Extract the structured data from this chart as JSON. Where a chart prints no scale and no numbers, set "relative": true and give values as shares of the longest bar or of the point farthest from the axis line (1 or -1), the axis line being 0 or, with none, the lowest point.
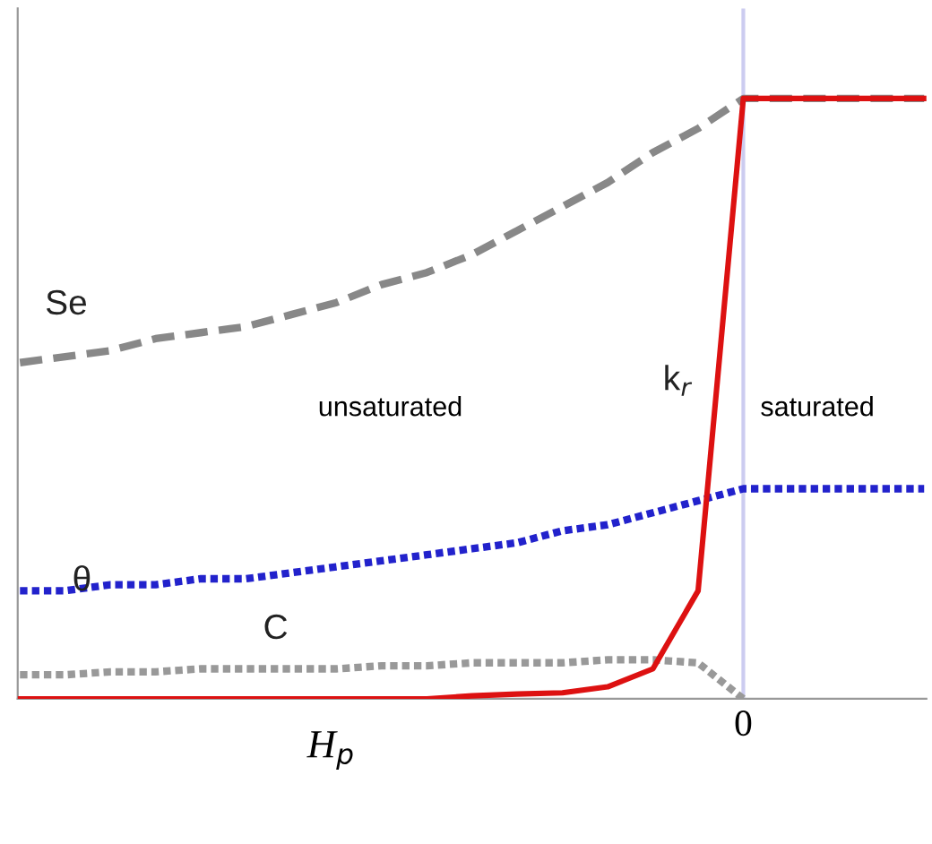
{
  "chart_data": {
    "type": "line",
    "relative": true,
    "categories": [
      null,
      null,
      null,
      null,
      null,
      null,
      null,
      null,
      null,
      null,
      null,
      null,
      null,
      null,
      null,
      null,
      null,
      null,
      null,
      null,
      null
    ],
    "series": [
      {
        "name": "Se",
        "color": "#888888",
        "line_style": "dashed",
        "values": [
          0.56,
          0.57,
          0.58,
          0.6,
          0.61,
          0.62,
          0.64,
          0.66,
          0.69,
          0.71,
          0.74,
          0.78,
          0.82,
          0.86,
          0.91,
          0.95,
          1,
          1,
          1,
          1,
          1
        ]
      },
      {
        "name": "θ",
        "color": "#2222cc",
        "line_style": "dotted",
        "values": [
          0.18,
          0.18,
          0.19,
          0.19,
          0.2,
          0.2,
          0.21,
          0.22,
          0.23,
          0.24,
          0.25,
          0.26,
          0.28,
          0.29,
          0.31,
          0.33,
          0.35,
          0.35,
          0.35,
          0.35,
          0.35
        ]
      },
      {
        "name": "C",
        "color": "#999999",
        "line_style": "dotted",
        "values": [
          0.04,
          0.04,
          0.045,
          0.045,
          0.05,
          0.05,
          0.05,
          0.05,
          0.055,
          0.055,
          0.06,
          0.06,
          0.06,
          0.065,
          0.065,
          0.06,
          0,
          null,
          null,
          null,
          null
        ]
      },
      {
        "name": "k$_{r}$",
        "color": "#dd1111",
        "line_style": "solid",
        "values": [
          0,
          0,
          0,
          0,
          0,
          0,
          0,
          0,
          0,
          0,
          0.005,
          0.008,
          0.01,
          0.02,
          0.05,
          0.18,
          1,
          1,
          1,
          1,
          1
        ]
      }
    ],
    "annotations": [
      "unsaturated",
      "saturated",
      "H$_{p}$"
    ],
    "ref_lines": [
      {
        "axis": "x",
        "label": "0",
        "color": "#ccccf0"
      }
    ],
    "grid": false,
    "legend": false
  }
}
